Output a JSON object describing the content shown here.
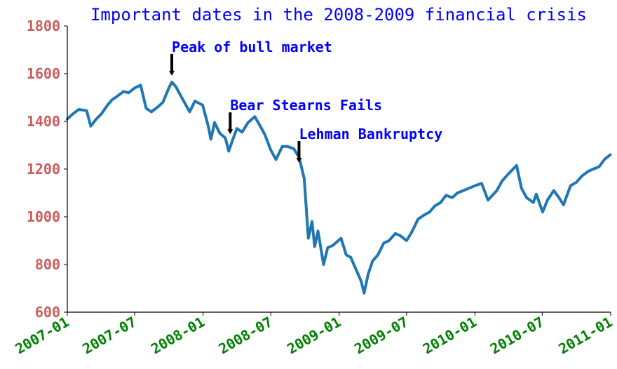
{
  "chart_data": {
    "type": "line",
    "title": "Important dates in the 2008-2009 financial crisis",
    "xlabel": "",
    "ylabel": "",
    "xlim": [
      "2007-01-01",
      "2011-01-01"
    ],
    "ylim": [
      600,
      1800
    ],
    "grid": false,
    "x_ticks": [
      "2007-01",
      "2007-07",
      "2008-01",
      "2008-07",
      "2009-01",
      "2009-07",
      "2010-01",
      "2010-07",
      "2011-01"
    ],
    "y_ticks": [
      600,
      800,
      1000,
      1200,
      1400,
      1600,
      1800
    ],
    "colors": {
      "line": "#1f77b4",
      "title": "#0000ff",
      "annotation_text": "#0000ff",
      "annotation_arrow": "#000000",
      "y_tick_labels": "#cd5c5c",
      "x_tick_labels": "#008000"
    },
    "series": [
      {
        "x": [
          "2007-01-01",
          "2007-01-15",
          "2007-02-01",
          "2007-02-22",
          "2007-03-05",
          "2007-03-20",
          "2007-04-02",
          "2007-04-20",
          "2007-05-01",
          "2007-05-15",
          "2007-06-01",
          "2007-06-15",
          "2007-07-01",
          "2007-07-17",
          "2007-08-01",
          "2007-08-15",
          "2007-09-01",
          "2007-09-15",
          "2007-10-01",
          "2007-10-09",
          "2007-10-20",
          "2007-11-01",
          "2007-11-26",
          "2007-12-10",
          "2007-12-31",
          "2008-01-15",
          "2008-01-22",
          "2008-02-01",
          "2008-02-15",
          "2008-03-01",
          "2008-03-10",
          "2008-03-20",
          "2008-04-01",
          "2008-04-15",
          "2008-05-01",
          "2008-05-19",
          "2008-06-01",
          "2008-06-15",
          "2008-07-01",
          "2008-07-15",
          "2008-08-01",
          "2008-08-15",
          "2008-09-01",
          "2008-09-15",
          "2008-09-29",
          "2008-10-10",
          "2008-10-20",
          "2008-10-27",
          "2008-11-05",
          "2008-11-20",
          "2008-12-01",
          "2008-12-15",
          "2009-01-06",
          "2009-01-20",
          "2009-02-01",
          "2009-02-15",
          "2009-03-01",
          "2009-03-09",
          "2009-03-20",
          "2009-04-01",
          "2009-04-15",
          "2009-05-01",
          "2009-05-15",
          "2009-06-01",
          "2009-06-15",
          "2009-07-01",
          "2009-07-15",
          "2009-08-01",
          "2009-08-15",
          "2009-09-01",
          "2009-09-15",
          "2009-10-01",
          "2009-10-15",
          "2009-11-01",
          "2009-11-15",
          "2009-12-01",
          "2010-01-01",
          "2010-01-19",
          "2010-02-05",
          "2010-03-01",
          "2010-03-15",
          "2010-04-01",
          "2010-04-23",
          "2010-05-06",
          "2010-05-20",
          "2010-06-07",
          "2010-06-15",
          "2010-07-02",
          "2010-07-15",
          "2010-08-01",
          "2010-08-15",
          "2010-08-27",
          "2010-09-15",
          "2010-10-01",
          "2010-10-15",
          "2010-11-01",
          "2010-11-15",
          "2010-12-01",
          "2010-12-15",
          "2010-12-31"
        ],
        "values": [
          1410,
          1430,
          1450,
          1445,
          1380,
          1410,
          1430,
          1470,
          1490,
          1505,
          1525,
          1520,
          1540,
          1552,
          1455,
          1440,
          1460,
          1480,
          1540,
          1565,
          1545,
          1510,
          1440,
          1485,
          1468,
          1380,
          1325,
          1395,
          1350,
          1330,
          1275,
          1320,
          1370,
          1355,
          1395,
          1420,
          1385,
          1345,
          1280,
          1240,
          1295,
          1295,
          1285,
          1250,
          1160,
          910,
          980,
          875,
          940,
          800,
          870,
          880,
          910,
          840,
          830,
          780,
          730,
          680,
          760,
          815,
          840,
          890,
          900,
          930,
          920,
          900,
          935,
          990,
          1005,
          1020,
          1045,
          1060,
          1090,
          1080,
          1100,
          1110,
          1130,
          1140,
          1070,
          1110,
          1150,
          1180,
          1215,
          1120,
          1080,
          1060,
          1095,
          1020,
          1070,
          1110,
          1080,
          1050,
          1130,
          1145,
          1170,
          1190,
          1200,
          1210,
          1240,
          1260
        ]
      }
    ],
    "annotations": [
      {
        "x": "2007-10-09",
        "y": 1565,
        "text": "Peak of bull market"
      },
      {
        "x": "2008-03-14",
        "y": 1320,
        "text": "Bear Stearns Fails"
      },
      {
        "x": "2008-09-15",
        "y": 1200,
        "text": "Lehman Bankruptcy"
      }
    ]
  }
}
